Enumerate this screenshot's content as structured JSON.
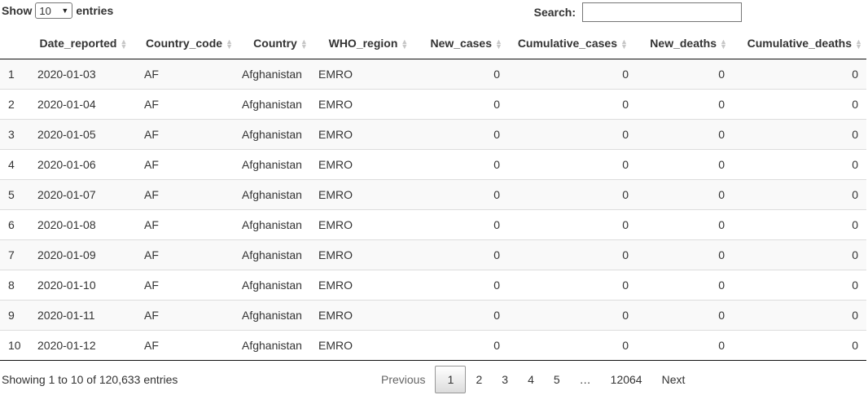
{
  "length": {
    "show_label": "Show",
    "value": "10",
    "entries_label": "entries"
  },
  "search": {
    "label": "Search:",
    "value": ""
  },
  "columns": [
    "",
    "Date_reported",
    "Country_code",
    "Country",
    "WHO_region",
    "New_cases",
    "Cumulative_cases",
    "New_deaths",
    "Cumulative_deaths"
  ],
  "rows": [
    [
      "1",
      "2020-01-03",
      "AF",
      "Afghanistan",
      "EMRO",
      "0",
      "0",
      "0",
      "0"
    ],
    [
      "2",
      "2020-01-04",
      "AF",
      "Afghanistan",
      "EMRO",
      "0",
      "0",
      "0",
      "0"
    ],
    [
      "3",
      "2020-01-05",
      "AF",
      "Afghanistan",
      "EMRO",
      "0",
      "0",
      "0",
      "0"
    ],
    [
      "4",
      "2020-01-06",
      "AF",
      "Afghanistan",
      "EMRO",
      "0",
      "0",
      "0",
      "0"
    ],
    [
      "5",
      "2020-01-07",
      "AF",
      "Afghanistan",
      "EMRO",
      "0",
      "0",
      "0",
      "0"
    ],
    [
      "6",
      "2020-01-08",
      "AF",
      "Afghanistan",
      "EMRO",
      "0",
      "0",
      "0",
      "0"
    ],
    [
      "7",
      "2020-01-09",
      "AF",
      "Afghanistan",
      "EMRO",
      "0",
      "0",
      "0",
      "0"
    ],
    [
      "8",
      "2020-01-10",
      "AF",
      "Afghanistan",
      "EMRO",
      "0",
      "0",
      "0",
      "0"
    ],
    [
      "9",
      "2020-01-11",
      "AF",
      "Afghanistan",
      "EMRO",
      "0",
      "0",
      "0",
      "0"
    ],
    [
      "10",
      "2020-01-12",
      "AF",
      "Afghanistan",
      "EMRO",
      "0",
      "0",
      "0",
      "0"
    ]
  ],
  "info": "Showing 1 to 10 of 120,633 entries",
  "pagination": {
    "previous": "Previous",
    "pages": [
      "1",
      "2",
      "3",
      "4",
      "5"
    ],
    "ellipsis": "…",
    "last": "12064",
    "next": "Next",
    "current": "1"
  },
  "icons": {
    "sort": "sort-both-icon",
    "select": "chevron-down-icon"
  }
}
